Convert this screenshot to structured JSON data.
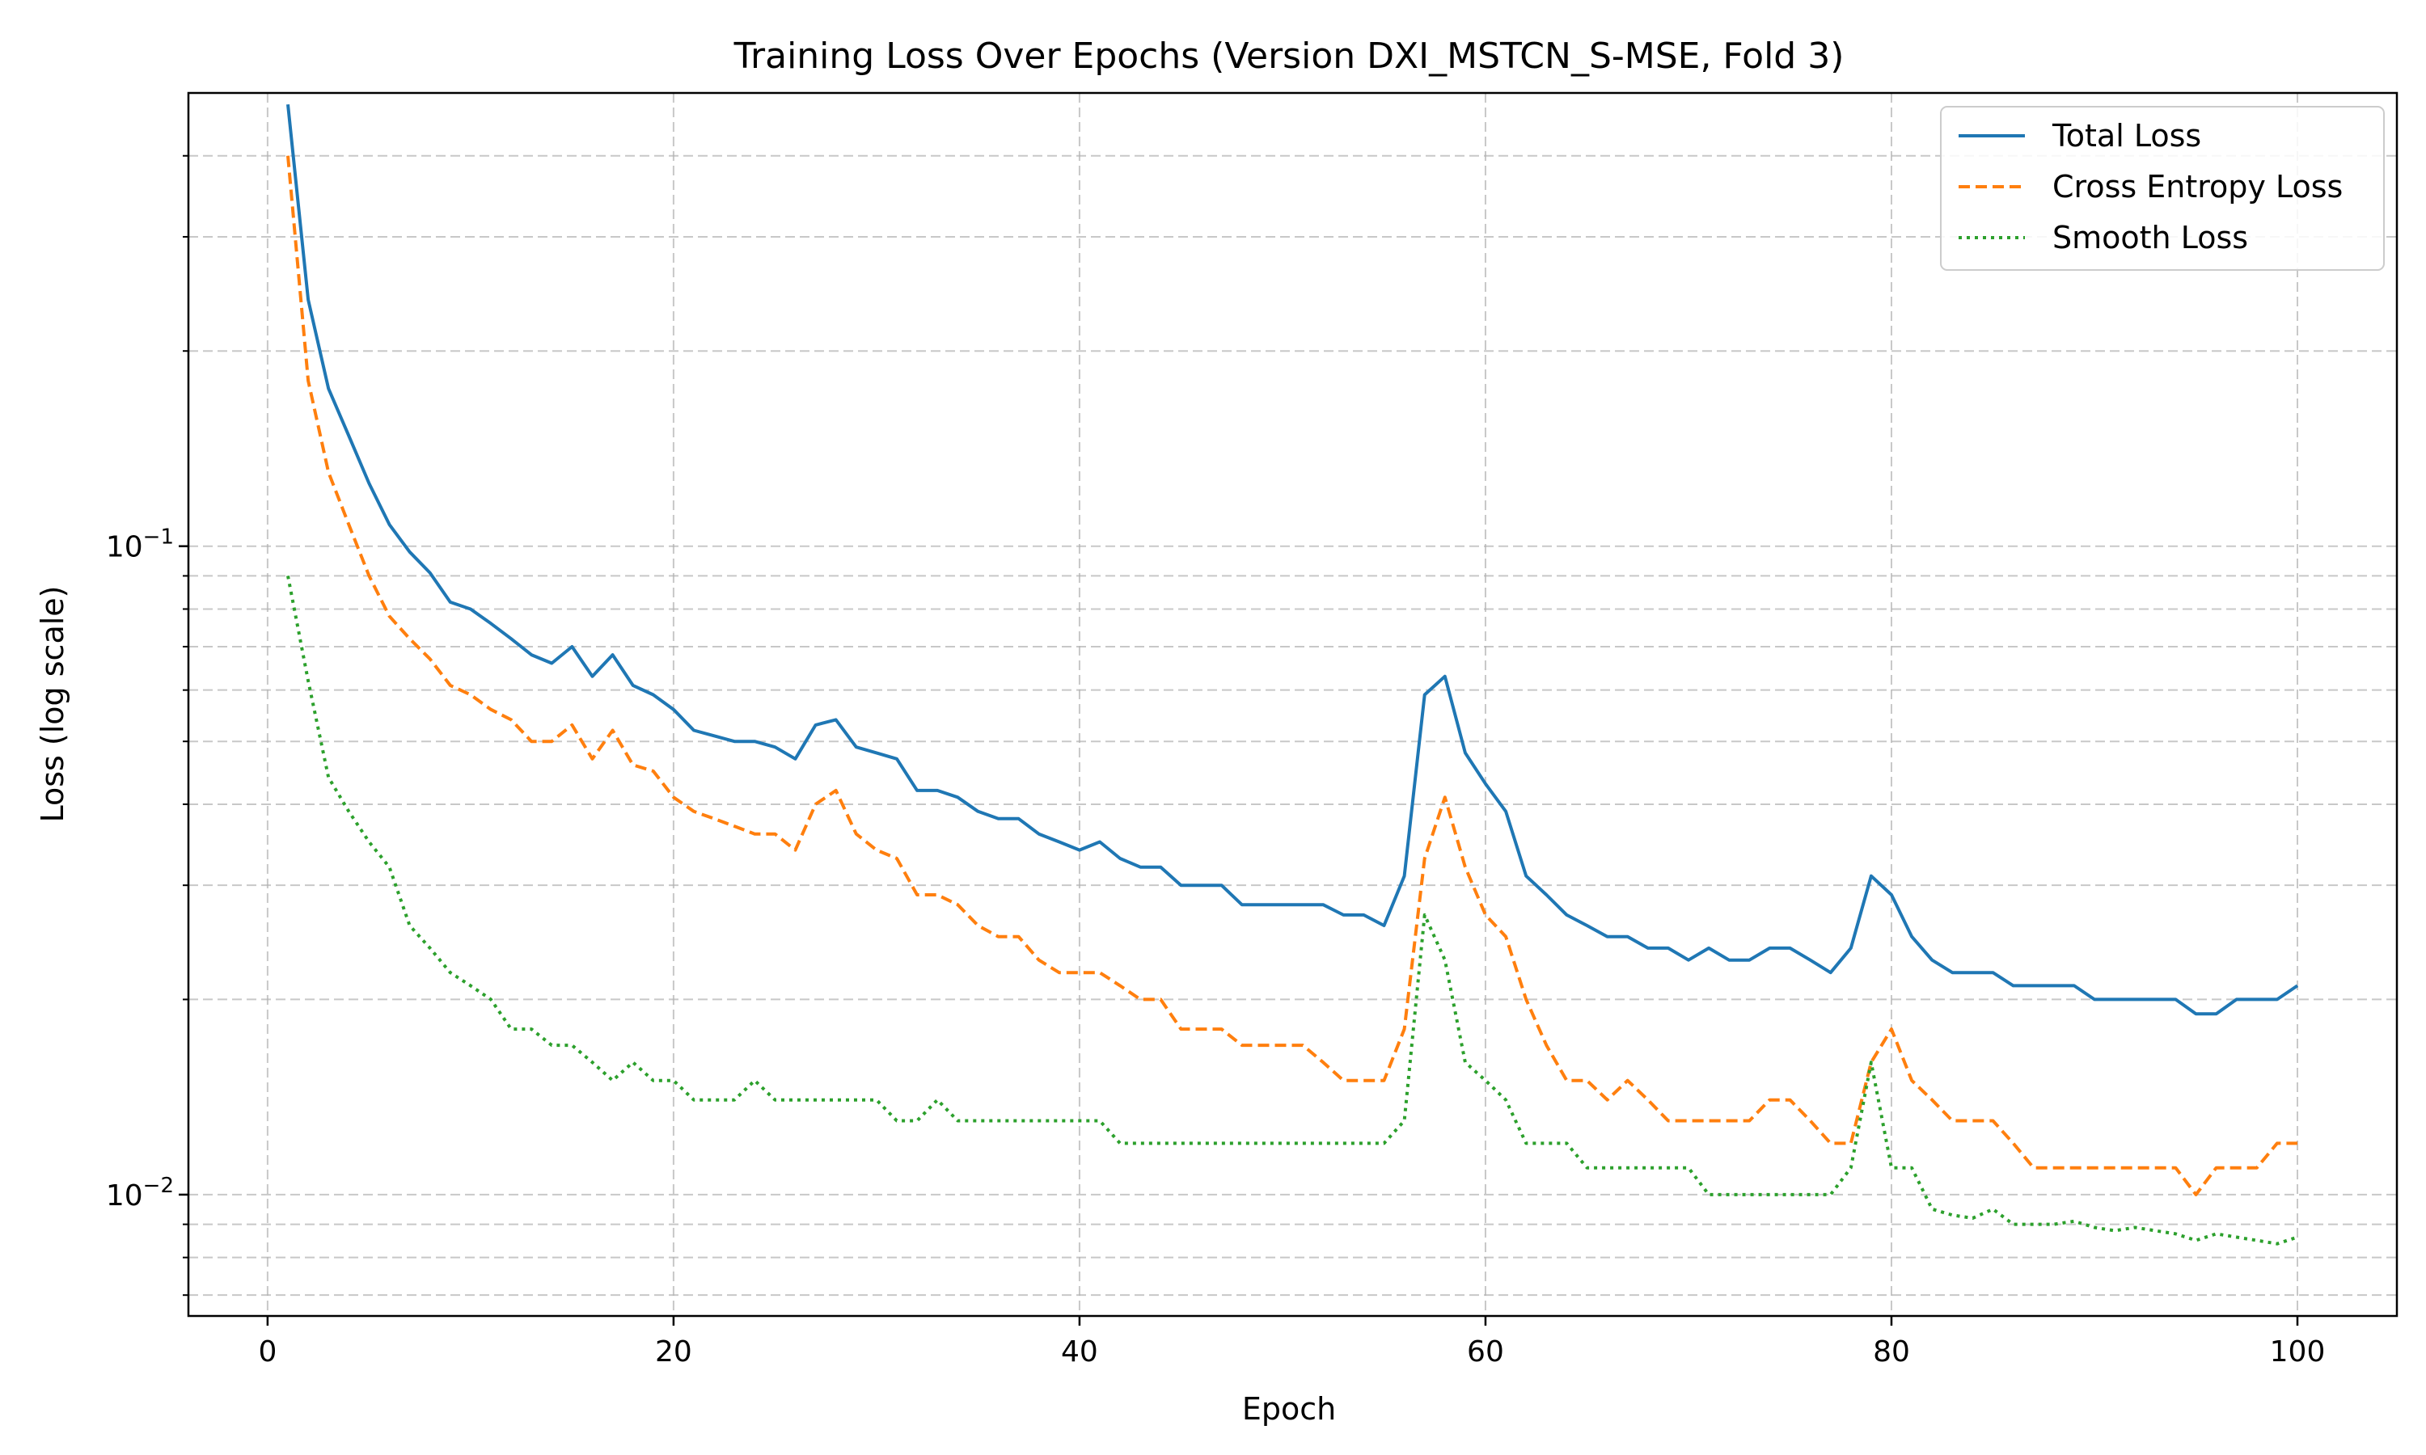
{
  "chart_data": {
    "type": "line",
    "title": "Training Loss Over Epochs (Version DXI_MSTCN_S-MSE, Fold 3)",
    "xlabel": "Epoch",
    "ylabel": "Loss (log scale)",
    "xlim": [
      -3.9,
      104.9
    ],
    "ylim": [
      0.0065,
      0.5
    ],
    "yscale": "log",
    "grid": true,
    "legend_position": "top-right",
    "xticks": [
      {
        "value": 0,
        "label": "0"
      },
      {
        "value": 20,
        "label": "20"
      },
      {
        "value": 40,
        "label": "40"
      },
      {
        "value": 60,
        "label": "60"
      },
      {
        "value": 80,
        "label": "80"
      },
      {
        "value": 100,
        "label": "100"
      }
    ],
    "yticks_major": [
      {
        "value": 0.01,
        "base": "10",
        "exp": "−2"
      },
      {
        "value": 0.1,
        "base": "10",
        "exp": "−1"
      }
    ],
    "yticks_minor": [
      0.007,
      0.008,
      0.009,
      0.02,
      0.03,
      0.04,
      0.05,
      0.06,
      0.07,
      0.08,
      0.09,
      0.2,
      0.3,
      0.4
    ],
    "x_start": 1,
    "series": [
      {
        "name": "Total Loss",
        "color": "#1f77b4",
        "dash": "solid",
        "values": [
          0.48,
          0.24,
          0.175,
          0.148,
          0.125,
          0.108,
          0.098,
          0.091,
          0.082,
          0.08,
          0.076,
          0.072,
          0.068,
          0.066,
          0.07,
          0.063,
          0.068,
          0.061,
          0.059,
          0.056,
          0.052,
          0.051,
          0.05,
          0.05,
          0.049,
          0.047,
          0.053,
          0.054,
          0.049,
          0.048,
          0.047,
          0.042,
          0.042,
          0.041,
          0.039,
          0.038,
          0.038,
          0.036,
          0.035,
          0.034,
          0.035,
          0.033,
          0.032,
          0.032,
          0.03,
          0.03,
          0.03,
          0.028,
          0.028,
          0.028,
          0.028,
          0.028,
          0.027,
          0.027,
          0.026,
          0.031,
          0.059,
          0.063,
          0.048,
          0.043,
          0.039,
          0.031,
          0.029,
          0.027,
          0.026,
          0.025,
          0.025,
          0.024,
          0.024,
          0.023,
          0.024,
          0.023,
          0.023,
          0.024,
          0.024,
          0.023,
          0.022,
          0.024,
          0.031,
          0.029,
          0.025,
          0.023,
          0.022,
          0.022,
          0.022,
          0.021,
          0.021,
          0.021,
          0.021,
          0.02,
          0.02,
          0.02,
          0.02,
          0.02,
          0.019,
          0.019,
          0.02,
          0.02,
          0.02,
          0.021
        ]
      },
      {
        "name": "Cross Entropy Loss",
        "color": "#ff7f0e",
        "dash": "dashed",
        "values": [
          0.4,
          0.18,
          0.13,
          0.108,
          0.09,
          0.078,
          0.072,
          0.067,
          0.061,
          0.059,
          0.056,
          0.054,
          0.05,
          0.05,
          0.053,
          0.047,
          0.052,
          0.046,
          0.045,
          0.041,
          0.039,
          0.038,
          0.037,
          0.036,
          0.036,
          0.034,
          0.04,
          0.042,
          0.036,
          0.034,
          0.033,
          0.029,
          0.029,
          0.028,
          0.026,
          0.025,
          0.025,
          0.023,
          0.022,
          0.022,
          0.022,
          0.021,
          0.02,
          0.02,
          0.018,
          0.018,
          0.018,
          0.017,
          0.017,
          0.017,
          0.017,
          0.016,
          0.015,
          0.015,
          0.015,
          0.018,
          0.033,
          0.041,
          0.032,
          0.027,
          0.025,
          0.02,
          0.017,
          0.015,
          0.015,
          0.014,
          0.015,
          0.014,
          0.013,
          0.013,
          0.013,
          0.013,
          0.013,
          0.014,
          0.014,
          0.013,
          0.012,
          0.012,
          0.016,
          0.018,
          0.015,
          0.014,
          0.013,
          0.013,
          0.013,
          0.012,
          0.011,
          0.011,
          0.011,
          0.011,
          0.011,
          0.011,
          0.011,
          0.011,
          0.01,
          0.011,
          0.011,
          0.011,
          0.012,
          0.012
        ]
      },
      {
        "name": "Smooth Loss",
        "color": "#2ca02c",
        "dash": "dotted",
        "values": [
          0.09,
          0.062,
          0.044,
          0.039,
          0.035,
          0.032,
          0.026,
          0.024,
          0.022,
          0.021,
          0.02,
          0.018,
          0.018,
          0.017,
          0.017,
          0.016,
          0.015,
          0.016,
          0.015,
          0.015,
          0.014,
          0.014,
          0.014,
          0.015,
          0.014,
          0.014,
          0.014,
          0.014,
          0.014,
          0.014,
          0.013,
          0.013,
          0.014,
          0.013,
          0.013,
          0.013,
          0.013,
          0.013,
          0.013,
          0.013,
          0.013,
          0.012,
          0.012,
          0.012,
          0.012,
          0.012,
          0.012,
          0.012,
          0.012,
          0.012,
          0.012,
          0.012,
          0.012,
          0.012,
          0.012,
          0.013,
          0.027,
          0.023,
          0.016,
          0.015,
          0.014,
          0.012,
          0.012,
          0.012,
          0.011,
          0.011,
          0.011,
          0.011,
          0.011,
          0.011,
          0.01,
          0.01,
          0.01,
          0.01,
          0.01,
          0.01,
          0.01,
          0.011,
          0.016,
          0.011,
          0.011,
          0.0095,
          0.0093,
          0.0092,
          0.0095,
          0.009,
          0.009,
          0.009,
          0.0091,
          0.0089,
          0.0088,
          0.0089,
          0.0088,
          0.0087,
          0.0085,
          0.0087,
          0.0086,
          0.0085,
          0.0084,
          0.0086
        ]
      }
    ]
  }
}
